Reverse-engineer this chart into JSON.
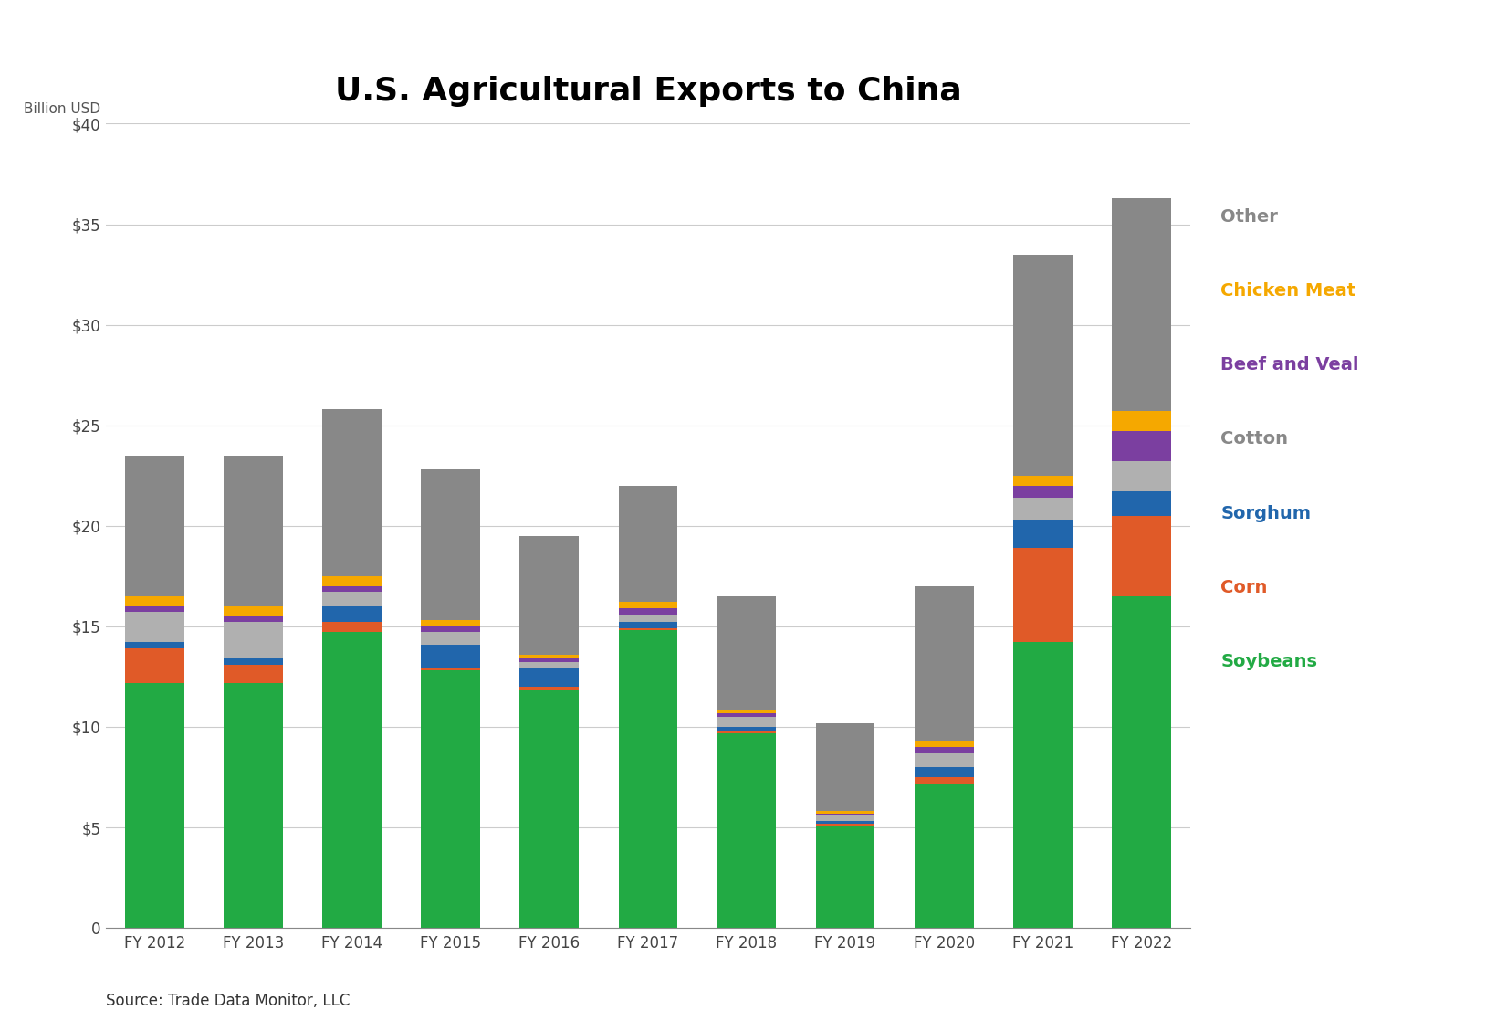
{
  "title": "U.S. Agricultural Exports to China",
  "ylabel": "Billion USD",
  "source": "Source: Trade Data Monitor, LLC",
  "years": [
    "FY 2012",
    "FY 2013",
    "FY 2014",
    "FY 2015",
    "FY 2016",
    "FY 2017",
    "FY 2018",
    "FY 2019",
    "FY 2020",
    "FY 2021",
    "FY 2022"
  ],
  "series": {
    "Soybeans": [
      12.2,
      12.2,
      14.7,
      12.8,
      11.8,
      14.8,
      9.7,
      5.1,
      7.2,
      14.2,
      16.5
    ],
    "Corn": [
      1.7,
      0.9,
      0.5,
      0.1,
      0.2,
      0.1,
      0.1,
      0.1,
      0.3,
      4.7,
      4.0
    ],
    "Sorghum": [
      0.3,
      0.3,
      0.8,
      1.2,
      0.9,
      0.3,
      0.2,
      0.1,
      0.5,
      1.4,
      1.2
    ],
    "Cotton": [
      1.5,
      1.8,
      0.7,
      0.6,
      0.3,
      0.4,
      0.5,
      0.3,
      0.7,
      1.1,
      1.5
    ],
    "Beef and Veal": [
      0.3,
      0.3,
      0.3,
      0.3,
      0.2,
      0.3,
      0.2,
      0.1,
      0.3,
      0.6,
      1.5
    ],
    "Chicken Meat": [
      0.5,
      0.5,
      0.5,
      0.3,
      0.2,
      0.3,
      0.1,
      0.1,
      0.3,
      0.5,
      1.0
    ],
    "Other": [
      7.0,
      7.5,
      8.3,
      7.5,
      5.9,
      5.8,
      5.7,
      4.4,
      7.7,
      11.0,
      10.6
    ]
  },
  "colors": {
    "Soybeans": "#22aa44",
    "Corn": "#e05a28",
    "Sorghum": "#2166ac",
    "Cotton": "#b0b0b0",
    "Beef and Veal": "#7b3fa0",
    "Chicken Meat": "#f5a800",
    "Other": "#888888"
  },
  "legend_text_colors": {
    "Other": "#888888",
    "Chicken Meat": "#f5a800",
    "Beef and Veal": "#7b3fa0",
    "Cotton": "#888888",
    "Sorghum": "#2166ac",
    "Corn": "#e05a28",
    "Soybeans": "#22aa44"
  },
  "series_order": [
    "Soybeans",
    "Corn",
    "Sorghum",
    "Cotton",
    "Beef and Veal",
    "Chicken Meat",
    "Other"
  ],
  "legend_order": [
    "Other",
    "Chicken Meat",
    "Beef and Veal",
    "Cotton",
    "Sorghum",
    "Corn",
    "Soybeans"
  ],
  "ylim": [
    0,
    40
  ],
  "yticks": [
    0,
    5,
    10,
    15,
    20,
    25,
    30,
    35,
    40
  ],
  "ytick_labels": [
    "0",
    "$5",
    "$10",
    "$15",
    "$20",
    "$25",
    "$30",
    "$35",
    "$40"
  ],
  "background_color": "#ffffff",
  "title_fontsize": 26,
  "axis_fontsize": 12,
  "legend_fontsize": 14,
  "source_fontsize": 12
}
